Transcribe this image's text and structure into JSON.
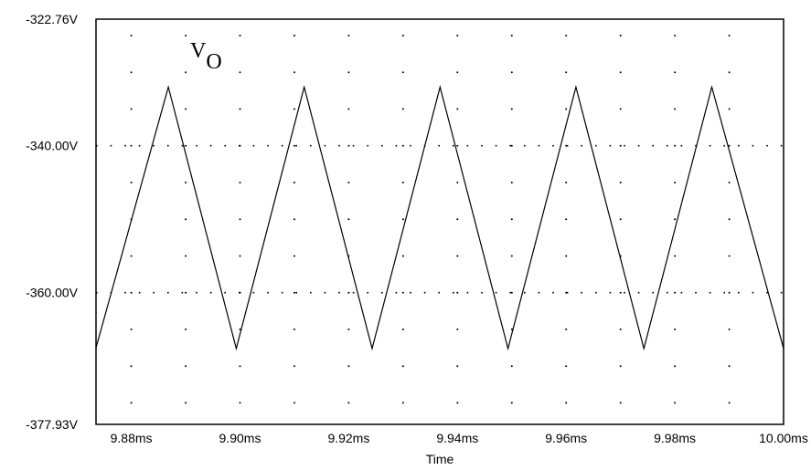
{
  "chart_data": {
    "type": "line",
    "xlabel": "Time",
    "xlim": [
      9.8735,
      10.0
    ],
    "ylim": [
      -377.93,
      -322.76
    ],
    "x_ticks": [
      9.88,
      9.9,
      9.92,
      9.94,
      9.96,
      9.98,
      10.0
    ],
    "x_tick_labels": [
      "9.88ms",
      "9.90ms",
      "9.92ms",
      "9.94ms",
      "9.96ms",
      "9.98ms",
      "10.00ms"
    ],
    "y_tick_labels": [
      "-322.76V",
      "-340.00V",
      "-360.00V",
      "-377.93V"
    ],
    "y_ticks": [
      -322.76,
      -340.0,
      -360.0,
      -377.93
    ],
    "grid": "dotted",
    "series": [
      {
        "name": "VO",
        "label_main": "V",
        "label_sub": "O",
        "x": [
          9.8735,
          9.8868,
          9.8993,
          9.9118,
          9.9243,
          9.9368,
          9.9493,
          9.9618,
          9.9743,
          9.9868,
          10.0
        ],
        "y": [
          -367.5,
          -332.0,
          -367.6,
          -332.0,
          -367.6,
          -332.0,
          -367.6,
          -332.0,
          -367.6,
          -332.0,
          -367.6
        ]
      }
    ]
  }
}
